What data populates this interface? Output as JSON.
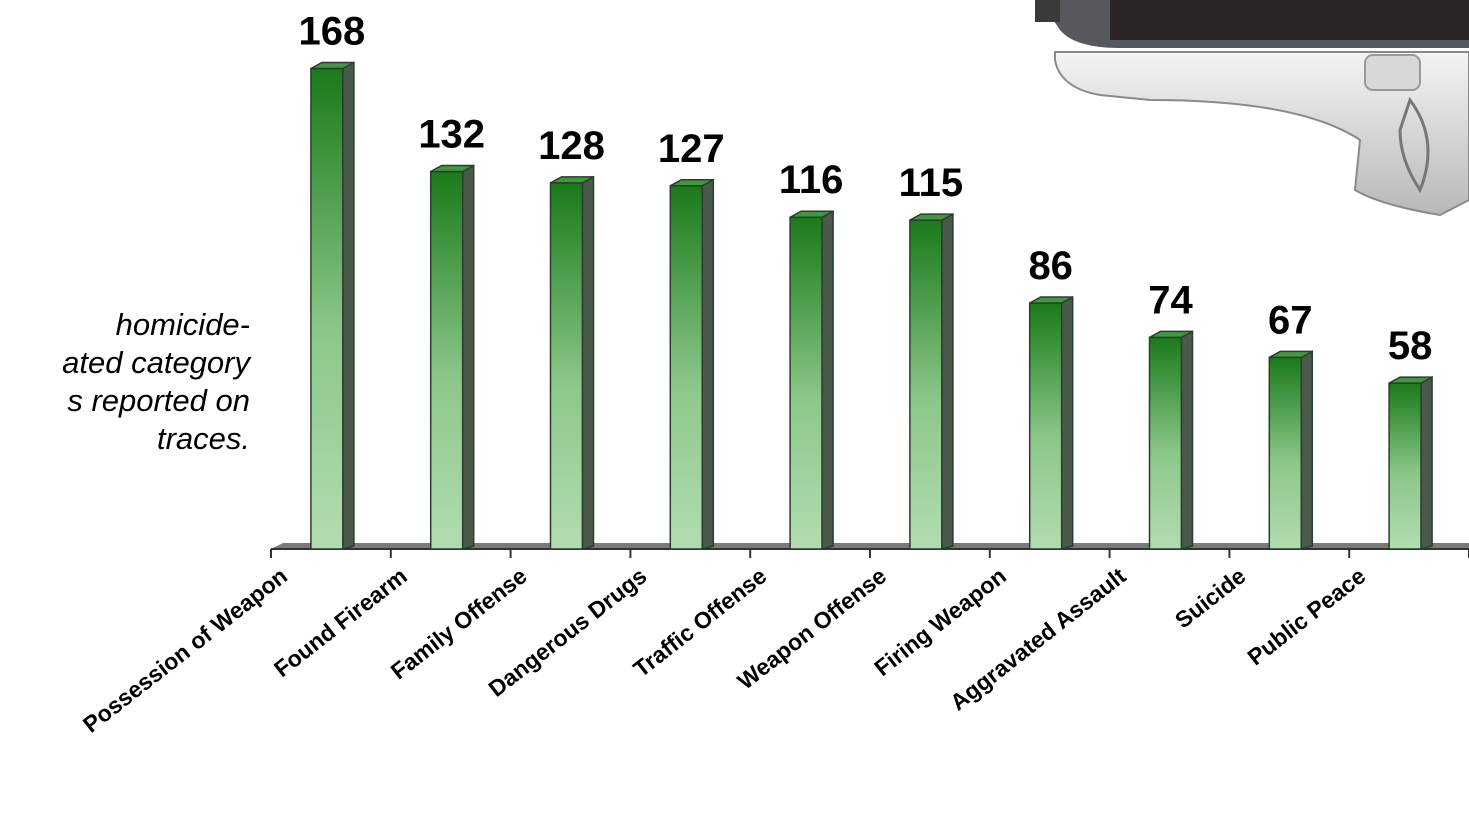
{
  "chart_data": {
    "type": "bar",
    "categories": [
      "Possession of Weapon",
      "Found Firearm",
      "Family Offense",
      "Dangerous Drugs",
      "Traffic Offense",
      "Weapon Offense",
      "Firing Weapon",
      "Aggravated Assault",
      "Suicide",
      "Public Peace"
    ],
    "values": [
      168,
      132,
      128,
      127,
      116,
      115,
      86,
      74,
      67,
      58
    ],
    "title": "",
    "xlabel": "",
    "ylabel": "",
    "ylim": [
      0,
      180
    ],
    "grid": false,
    "legend": "none"
  },
  "annotation": {
    "lines": [
      "homicide-",
      "ated category",
      "s reported on",
      "traces."
    ]
  },
  "decoration": {
    "image": "handgun-photo"
  },
  "colors": {
    "bar_top": "#1a7a1a",
    "bar_bottom": "#b2dcb0",
    "bar_side": "#4a5a4a",
    "axis": "#333333"
  }
}
